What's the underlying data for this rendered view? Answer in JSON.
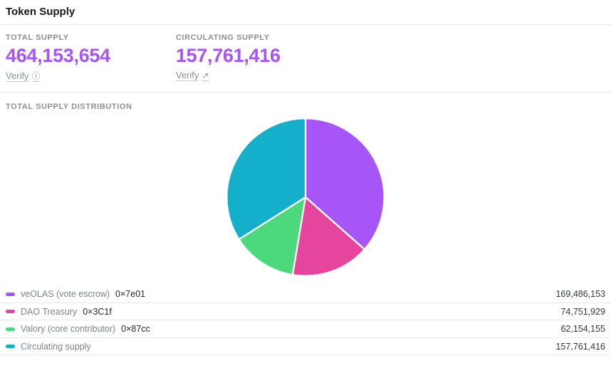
{
  "header": {
    "title": "Token Supply"
  },
  "stats": {
    "total": {
      "label": "TOTAL SUPPLY",
      "value": "464,153,654",
      "verify_label": "Verify"
    },
    "circulating": {
      "label": "CIRCULATING SUPPLY",
      "value": "157,761,416",
      "verify_label": "Verify"
    }
  },
  "distribution": {
    "title": "TOTAL SUPPLY DISTRIBUTION"
  },
  "chart_data": {
    "type": "pie",
    "title": "TOTAL SUPPLY DISTRIBUTION",
    "labels": [
      "veOLAS (vote escrow)",
      "DAO Treasury",
      "Valory (core contributor)",
      "Circulating supply"
    ],
    "addresses": [
      "0×7e01",
      "0×3C1f",
      "0×87cc",
      ""
    ],
    "values": [
      169486153,
      74751929,
      62154155,
      157761416
    ],
    "display_values": [
      "169,486,153",
      "74,751,929",
      "62,154,155",
      "157,761,416"
    ],
    "colors": [
      "#a855f7",
      "#e5459c",
      "#4cd97b",
      "#14b0cb"
    ],
    "start_angle_deg": -90,
    "direction": "clockwise",
    "legend_position": "bottom",
    "slice_border_color": "#ffffff"
  },
  "ui_colors": {
    "accent_purple": "#a855f7",
    "muted_label": "#8b9097",
    "divider": "#e6e7e9"
  },
  "icons": {
    "info": "ⓘ",
    "external": "↗"
  }
}
